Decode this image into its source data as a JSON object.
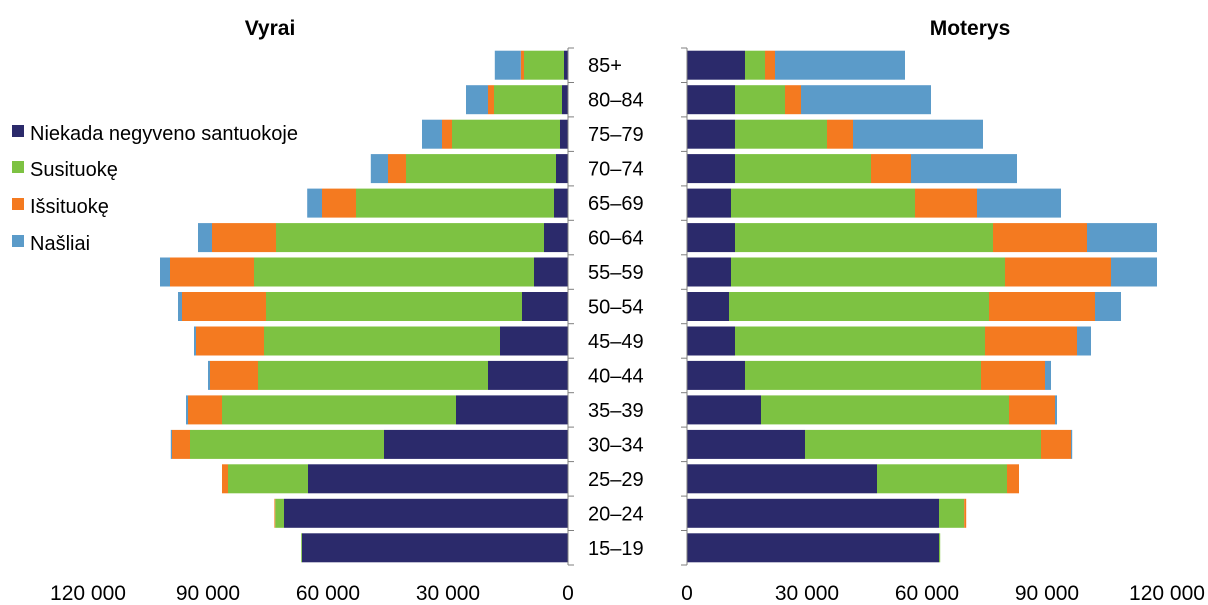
{
  "chart_data": {
    "type": "bar",
    "orientation": "horizontal-stacked-pyramid",
    "categories": [
      "15–19",
      "20–24",
      "25–29",
      "30–34",
      "35–39",
      "40–44",
      "45–49",
      "50–54",
      "55–59",
      "60–64",
      "65–69",
      "70–74",
      "75–79",
      "80–84",
      "85+"
    ],
    "legend": {
      "placement": "left",
      "entries": [
        "Niekada negyveno santuokoje",
        "Susituokę",
        "Išsituokę",
        "Našliai"
      ]
    },
    "colors": [
      "#2b2a6b",
      "#7dc242",
      "#f47a20",
      "#5b9bc9"
    ],
    "panels": [
      {
        "title": "Vyrai",
        "direction": "left",
        "xlim": [
          0,
          120000
        ],
        "ticks": [
          0,
          30000,
          60000,
          90000,
          120000
        ],
        "tick_labels": [
          "0",
          "30 000",
          "60 000",
          "90 000",
          "120 000"
        ],
        "series": [
          {
            "name": "Niekada negyveno santuokoje",
            "values": [
              66500,
              71000,
              65000,
              46000,
              28000,
              20000,
              17000,
              11500,
              8500,
              6000,
              3500,
              3000,
              2000,
              1500,
              1000
            ]
          },
          {
            "name": "Susituokę",
            "values": [
              200,
              2200,
              20000,
              48500,
              58500,
              57500,
              59000,
              64000,
              70000,
              67000,
              49500,
              37500,
              27000,
              17000,
              10000
            ]
          },
          {
            "name": "Išsituokę",
            "values": [
              0,
              200,
              1500,
              4500,
              8500,
              12000,
              17000,
              21000,
              21000,
              16000,
              8500,
              4500,
              2500,
              1500,
              800
            ]
          },
          {
            "name": "Našliai",
            "values": [
              0,
              0,
              0,
              300,
              500,
              500,
              500,
              1000,
              2500,
              3500,
              3700,
              4300,
              5000,
              5500,
              6500
            ]
          }
        ]
      },
      {
        "title": "Moterys",
        "direction": "right",
        "xlim": [
          0,
          120000
        ],
        "ticks": [
          0,
          30000,
          60000,
          90000,
          120000
        ],
        "tick_labels": [
          "0",
          "30 000",
          "60 000",
          "90 000",
          "120 000"
        ],
        "series": [
          {
            "name": "Niekada negyveno santuokoje",
            "values": [
              63000,
              63000,
              47500,
              29500,
              18500,
              14500,
              12000,
              10500,
              11000,
              12000,
              11000,
              12000,
              12000,
              12000,
              14500
            ]
          },
          {
            "name": "Susituokę",
            "values": [
              300,
              6300,
              32500,
              59000,
              62000,
              59000,
              62500,
              65000,
              68500,
              64500,
              46000,
              34000,
              23000,
              12500,
              5000
            ]
          },
          {
            "name": "Išsituokę",
            "values": [
              0,
              500,
              3000,
              7500,
              11500,
              16000,
              23000,
              26500,
              26500,
              23500,
              15500,
              10000,
              6500,
              4000,
              2500
            ]
          },
          {
            "name": "Našliai",
            "values": [
              0,
              0,
              0,
              300,
              500,
              1500,
              3500,
              6500,
              11500,
              17500,
              21000,
              26500,
              32500,
              32500,
              32500
            ]
          }
        ]
      }
    ]
  }
}
